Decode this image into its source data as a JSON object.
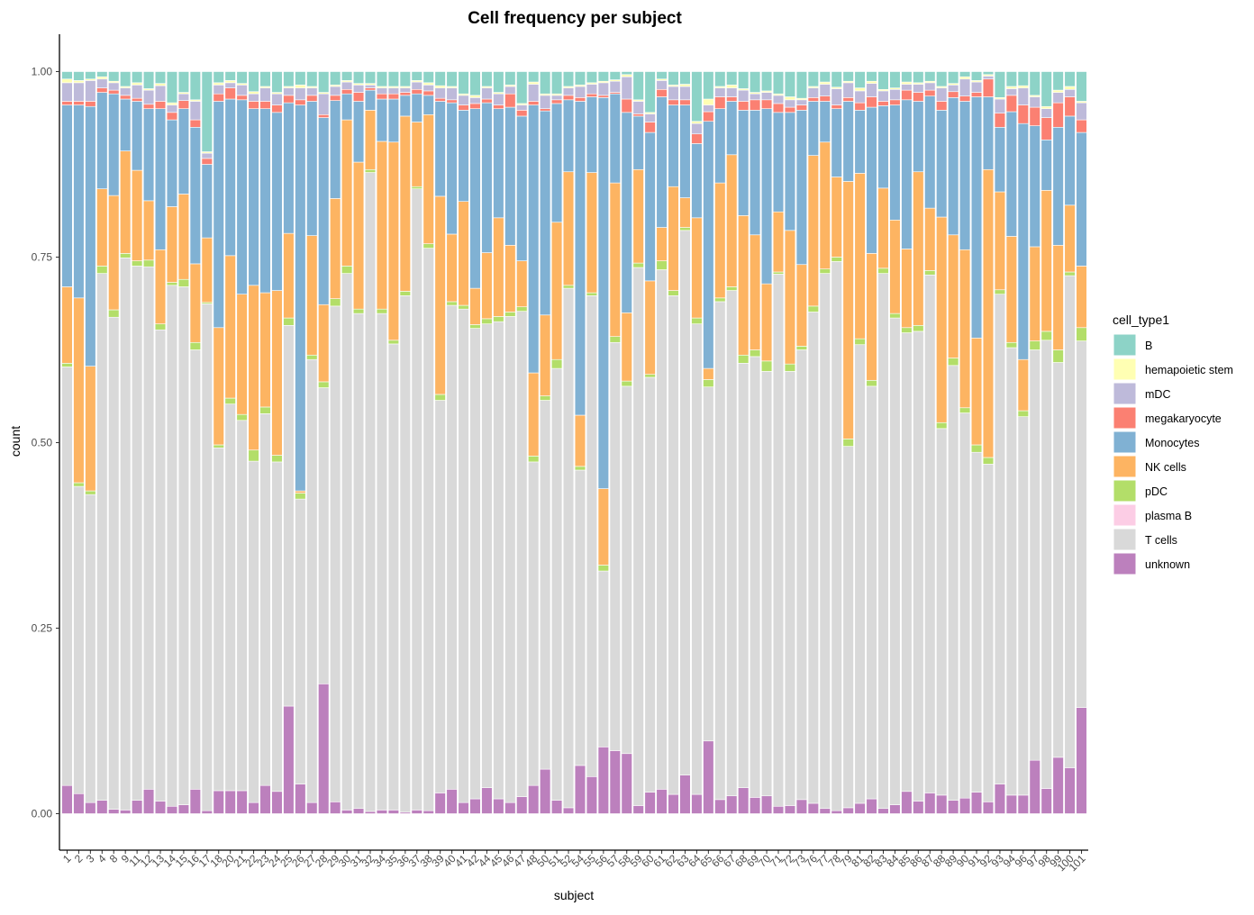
{
  "chart_data": {
    "type": "bar",
    "stacked": true,
    "title": "Cell frequency per subject",
    "xlabel": "subject",
    "ylabel": "count",
    "ylim": [
      0,
      1
    ],
    "yticks": [
      "0.00",
      "0.25",
      "0.50",
      "0.75",
      "1.00"
    ],
    "categories": [
      "1",
      "2",
      "3",
      "4",
      "8",
      "9",
      "11",
      "12",
      "13",
      "14",
      "15",
      "16",
      "17",
      "18",
      "20",
      "21",
      "22",
      "23",
      "24",
      "25",
      "26",
      "27",
      "28",
      "29",
      "30",
      "31",
      "32",
      "34",
      "35",
      "36",
      "37",
      "38",
      "39",
      "40",
      "41",
      "42",
      "44",
      "45",
      "46",
      "47",
      "48",
      "50",
      "51",
      "52",
      "54",
      "55",
      "56",
      "57",
      "58",
      "59",
      "60",
      "61",
      "62",
      "63",
      "64",
      "65",
      "66",
      "67",
      "68",
      "69",
      "70",
      "71",
      "72",
      "73",
      "76",
      "77",
      "78",
      "79",
      "81",
      "82",
      "83",
      "84",
      "85",
      "86",
      "87",
      "88",
      "89",
      "90",
      "91",
      "92",
      "93",
      "94",
      "96",
      "97",
      "98",
      "99",
      "100",
      "101"
    ],
    "legend": {
      "title": "cell_type1",
      "placement": "right"
    },
    "stack_order_bottom_to_top": [
      "unknown",
      "T cells",
      "plasma B",
      "pDC",
      "NK cells",
      "Monocytes",
      "megakaryocyte",
      "mDC",
      "hemapoietic stem",
      "B"
    ],
    "series": [
      {
        "name": "B",
        "color": "#8DD3C7"
      },
      {
        "name": "hemapoietic stem",
        "color": "#FFFFB3"
      },
      {
        "name": "mDC",
        "color": "#BEBADA"
      },
      {
        "name": "megakaryocyte",
        "color": "#FB8072"
      },
      {
        "name": "Monocytes",
        "color": "#80B1D3"
      },
      {
        "name": "NK cells",
        "color": "#FDB462"
      },
      {
        "name": "pDC",
        "color": "#B3DE69"
      },
      {
        "name": "plasma B",
        "color": "#FCCDE5"
      },
      {
        "name": "T cells",
        "color": "#D9D9D9"
      },
      {
        "name": "unknown",
        "color": "#BC80BD"
      }
    ],
    "cumulative_tops": [
      [
        0.038,
        0.602,
        0.607,
        0.71,
        0.955,
        0.96,
        0.985,
        0.99
      ],
      [
        0.027,
        0.441,
        0.446,
        0.695,
        0.955,
        0.96,
        0.985,
        0.988
      ],
      [
        0.015,
        0.43,
        0.435,
        0.603,
        0.953,
        0.96,
        0.988,
        0.99
      ],
      [
        0.018,
        0.728,
        0.738,
        0.842,
        0.972,
        0.978,
        0.99,
        0.993
      ],
      [
        0.006,
        0.669,
        0.679,
        0.833,
        0.97,
        0.975,
        0.985,
        0.987
      ],
      [
        0.005,
        0.749,
        0.755,
        0.893,
        0.963,
        0.968,
        0.978,
        0.98
      ],
      [
        0.018,
        0.738,
        0.745,
        0.867,
        0.96,
        0.964,
        0.982,
        0.985
      ],
      [
        0.033,
        0.737,
        0.746,
        0.826,
        0.95,
        0.956,
        0.975,
        0.977
      ],
      [
        0.017,
        0.652,
        0.66,
        0.76,
        0.95,
        0.96,
        0.981,
        0.984
      ],
      [
        0.01,
        0.712,
        0.716,
        0.818,
        0.935,
        0.945,
        0.955,
        0.958
      ],
      [
        0.012,
        0.71,
        0.72,
        0.835,
        0.95,
        0.961,
        0.97,
        0.972
      ],
      [
        0.033,
        0.625,
        0.635,
        0.741,
        0.925,
        0.935,
        0.96,
        0.962
      ],
      [
        0.004,
        0.687,
        0.689,
        0.776,
        0.875,
        0.883,
        0.89,
        0.892
      ],
      [
        0.031,
        0.493,
        0.497,
        0.655,
        0.96,
        0.97,
        0.982,
        0.985
      ],
      [
        0.031,
        0.552,
        0.56,
        0.752,
        0.963,
        0.978,
        0.985,
        0.988
      ],
      [
        0.031,
        0.53,
        0.538,
        0.7,
        0.962,
        0.968,
        0.982,
        0.984
      ],
      [
        0.015,
        0.475,
        0.49,
        0.712,
        0.95,
        0.96,
        0.97,
        0.973
      ],
      [
        0.038,
        0.539,
        0.548,
        0.702,
        0.95,
        0.96,
        0.978,
        0.98
      ],
      [
        0.03,
        0.474,
        0.483,
        0.705,
        0.945,
        0.955,
        0.97,
        0.972
      ],
      [
        0.145,
        0.658,
        0.668,
        0.782,
        0.958,
        0.968,
        0.978,
        0.98
      ],
      [
        0.04,
        0.424,
        0.432,
        0.435,
        0.955,
        0.962,
        0.978,
        0.982
      ],
      [
        0.015,
        0.612,
        0.618,
        0.779,
        0.96,
        0.968,
        0.978,
        0.98
      ],
      [
        0.175,
        0.574,
        0.582,
        0.686,
        0.938,
        0.942,
        0.97,
        0.972
      ],
      [
        0.016,
        0.684,
        0.694,
        0.829,
        0.961,
        0.968,
        0.98,
        0.982
      ],
      [
        0.005,
        0.728,
        0.738,
        0.935,
        0.97,
        0.976,
        0.986,
        0.988
      ],
      [
        0.007,
        0.674,
        0.68,
        0.878,
        0.96,
        0.972,
        0.982,
        0.984
      ],
      [
        0.003,
        0.864,
        0.868,
        0.948,
        0.975,
        0.978,
        0.982,
        0.984
      ],
      [
        0.005,
        0.674,
        0.68,
        0.906,
        0.963,
        0.97,
        0.978,
        0.98
      ],
      [
        0.005,
        0.633,
        0.638,
        0.905,
        0.963,
        0.97,
        0.978,
        0.98
      ],
      [
        0.002,
        0.698,
        0.704,
        0.94,
        0.968,
        0.972,
        0.978,
        0.98
      ],
      [
        0.005,
        0.842,
        0.845,
        0.932,
        0.97,
        0.976,
        0.986,
        0.988
      ],
      [
        0.004,
        0.762,
        0.768,
        0.942,
        0.968,
        0.974,
        0.982,
        0.985
      ],
      [
        0.028,
        0.557,
        0.565,
        0.832,
        0.96,
        0.964,
        0.978,
        0.981
      ],
      [
        0.033,
        0.685,
        0.69,
        0.781,
        0.958,
        0.962,
        0.978,
        0.98
      ],
      [
        0.015,
        0.68,
        0.685,
        0.825,
        0.948,
        0.955,
        0.968,
        0.97
      ],
      [
        0.02,
        0.654,
        0.659,
        0.708,
        0.95,
        0.957,
        0.965,
        0.968
      ],
      [
        0.035,
        0.66,
        0.667,
        0.756,
        0.958,
        0.963,
        0.978,
        0.98
      ],
      [
        0.02,
        0.663,
        0.67,
        0.803,
        0.95,
        0.955,
        0.97,
        0.972
      ],
      [
        0.015,
        0.67,
        0.676,
        0.766,
        0.952,
        0.97,
        0.98,
        0.982
      ],
      [
        0.023,
        0.677,
        0.683,
        0.745,
        0.94,
        0.948,
        0.955,
        0.957
      ],
      [
        0.038,
        0.474,
        0.482,
        0.594,
        0.955,
        0.96,
        0.983,
        0.986
      ],
      [
        0.06,
        0.557,
        0.563,
        0.672,
        0.947,
        0.95,
        0.968,
        0.97
      ],
      [
        0.018,
        0.6,
        0.612,
        0.797,
        0.957,
        0.962,
        0.968,
        0.97
      ],
      [
        0.008,
        0.708,
        0.712,
        0.865,
        0.962,
        0.968,
        0.978,
        0.98
      ],
      [
        0.065,
        0.463,
        0.468,
        0.537,
        0.96,
        0.965,
        0.98,
        0.982
      ],
      [
        0.05,
        0.698,
        0.702,
        0.864,
        0.966,
        0.97,
        0.983,
        0.985
      ],
      [
        0.09,
        0.327,
        0.335,
        0.438,
        0.965,
        0.968,
        0.985,
        0.987
      ],
      [
        0.085,
        0.635,
        0.643,
        0.85,
        0.97,
        0.972,
        0.987,
        0.989
      ],
      [
        0.081,
        0.576,
        0.583,
        0.675,
        0.945,
        0.963,
        0.993,
        0.996
      ],
      [
        0.011,
        0.736,
        0.742,
        0.868,
        0.94,
        0.943,
        0.96,
        0.962
      ],
      [
        0.029,
        0.588,
        0.592,
        0.718,
        0.918,
        0.932,
        0.943,
        0.945
      ],
      [
        0.033,
        0.733,
        0.745,
        0.79,
        0.966,
        0.976,
        0.988,
        0.99
      ],
      [
        0.026,
        0.698,
        0.705,
        0.845,
        0.955,
        0.962,
        0.98,
        0.982
      ],
      [
        0.052,
        0.786,
        0.79,
        0.83,
        0.955,
        0.962,
        0.98,
        0.983
      ],
      [
        0.026,
        0.66,
        0.668,
        0.803,
        0.903,
        0.916,
        0.93,
        0.933
      ],
      [
        0.098,
        0.575,
        0.585,
        0.6,
        0.933,
        0.946,
        0.955,
        0.963
      ],
      [
        0.019,
        0.69,
        0.695,
        0.85,
        0.95,
        0.966,
        0.978,
        0.98
      ],
      [
        0.024,
        0.705,
        0.71,
        0.888,
        0.96,
        0.966,
        0.978,
        0.982
      ],
      [
        0.035,
        0.607,
        0.618,
        0.806,
        0.948,
        0.96,
        0.975,
        0.977
      ],
      [
        0.022,
        0.616,
        0.625,
        0.78,
        0.948,
        0.962,
        0.97,
        0.972
      ],
      [
        0.024,
        0.596,
        0.61,
        0.714,
        0.95,
        0.962,
        0.972,
        0.974
      ],
      [
        0.01,
        0.727,
        0.73,
        0.811,
        0.945,
        0.957,
        0.968,
        0.97
      ],
      [
        0.011,
        0.596,
        0.606,
        0.786,
        0.945,
        0.952,
        0.962,
        0.966
      ],
      [
        0.019,
        0.625,
        0.63,
        0.74,
        0.948,
        0.955,
        0.962,
        0.964
      ],
      [
        0.014,
        0.676,
        0.684,
        0.887,
        0.96,
        0.965,
        0.978,
        0.98
      ],
      [
        0.007,
        0.728,
        0.734,
        0.905,
        0.96,
        0.967,
        0.983,
        0.986
      ],
      [
        0.004,
        0.744,
        0.75,
        0.858,
        0.95,
        0.955,
        0.977,
        0.979
      ],
      [
        0.008,
        0.495,
        0.505,
        0.852,
        0.96,
        0.965,
        0.985,
        0.987
      ],
      [
        0.014,
        0.632,
        0.64,
        0.863,
        0.948,
        0.958,
        0.974,
        0.978
      ],
      [
        0.02,
        0.576,
        0.584,
        0.755,
        0.952,
        0.966,
        0.984,
        0.987
      ],
      [
        0.007,
        0.728,
        0.735,
        0.843,
        0.954,
        0.96,
        0.974,
        0.976
      ],
      [
        0.012,
        0.668,
        0.674,
        0.8,
        0.955,
        0.962,
        0.976,
        0.978
      ],
      [
        0.03,
        0.648,
        0.655,
        0.761,
        0.962,
        0.975,
        0.983,
        0.986
      ],
      [
        0.017,
        0.65,
        0.658,
        0.865,
        0.96,
        0.972,
        0.983,
        0.985
      ],
      [
        0.028,
        0.726,
        0.732,
        0.816,
        0.967,
        0.975,
        0.985,
        0.987
      ],
      [
        0.025,
        0.519,
        0.527,
        0.804,
        0.948,
        0.96,
        0.978,
        0.98
      ],
      [
        0.018,
        0.604,
        0.614,
        0.78,
        0.965,
        0.973,
        0.982,
        0.984
      ],
      [
        0.021,
        0.54,
        0.547,
        0.76,
        0.96,
        0.967,
        0.99,
        0.993
      ],
      [
        0.029,
        0.487,
        0.497,
        0.641,
        0.966,
        0.972,
        0.986,
        0.988
      ],
      [
        0.016,
        0.471,
        0.48,
        0.868,
        0.966,
        0.99,
        0.994,
        0.996
      ],
      [
        0.04,
        0.7,
        0.706,
        0.838,
        0.925,
        0.944,
        0.963,
        0.965
      ],
      [
        0.025,
        0.628,
        0.635,
        0.778,
        0.946,
        0.968,
        0.977,
        0.98
      ],
      [
        0.025,
        0.535,
        0.543,
        0.612,
        0.93,
        0.955,
        0.978,
        0.981
      ],
      [
        0.072,
        0.625,
        0.637,
        0.764,
        0.927,
        0.952,
        0.966,
        0.968
      ],
      [
        0.034,
        0.638,
        0.65,
        0.84,
        0.908,
        0.938,
        0.95,
        0.953
      ],
      [
        0.076,
        0.608,
        0.625,
        0.766,
        0.925,
        0.958,
        0.972,
        0.975
      ],
      [
        0.062,
        0.725,
        0.73,
        0.82,
        0.94,
        0.966,
        0.976,
        0.98
      ],
      [
        0.143,
        0.637,
        0.655,
        0.738,
        0.918,
        0.935,
        0.958,
        0.96
      ]
    ],
    "segment_order_of_cumulative_tops": [
      "unknown",
      "T cells",
      "pDC",
      "NK cells",
      "Monocytes",
      "megakaryocyte",
      "mDC",
      "hemapoietic stem"
    ]
  }
}
